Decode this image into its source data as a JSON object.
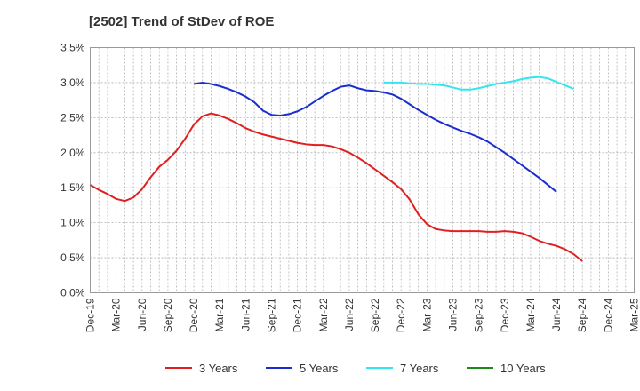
{
  "chart_data": {
    "type": "line",
    "title": "[2502]  Trend of StDev of ROE",
    "xlabel": "",
    "ylabel": "",
    "x_tick_labels": [
      "Dec-19",
      "Mar-20",
      "Jun-20",
      "Sep-20",
      "Dec-20",
      "Mar-21",
      "Jun-21",
      "Sep-21",
      "Dec-21",
      "Mar-22",
      "Jun-22",
      "Sep-22",
      "Dec-22",
      "Mar-23",
      "Jun-23",
      "Sep-23",
      "Dec-23",
      "Mar-24",
      "Jun-24",
      "Sep-24",
      "Dec-24",
      "Mar-25"
    ],
    "y_tick_labels": [
      "0.0%",
      "0.5%",
      "1.0%",
      "1.5%",
      "2.0%",
      "2.5%",
      "3.0%",
      "3.5%"
    ],
    "ylim": [
      0,
      3.5
    ],
    "grid": true,
    "legend_position": "bottom",
    "series": [
      {
        "name": "3 Years",
        "color": "#e02020",
        "start_index": 0,
        "values": [
          1.54,
          1.47,
          1.41,
          1.34,
          1.31,
          1.36,
          1.48,
          1.65,
          1.8,
          1.9,
          2.03,
          2.2,
          2.4,
          2.52,
          2.56,
          2.53,
          2.48,
          2.42,
          2.35,
          2.3,
          2.26,
          2.23,
          2.2,
          2.17,
          2.14,
          2.12,
          2.11,
          2.11,
          2.09,
          2.05,
          2.0,
          1.93,
          1.85,
          1.76,
          1.67,
          1.58,
          1.48,
          1.33,
          1.12,
          0.98,
          0.91,
          0.89,
          0.88,
          0.88,
          0.88,
          0.88,
          0.87,
          0.87,
          0.88,
          0.87,
          0.85,
          0.8,
          0.74,
          0.7,
          0.67,
          0.62,
          0.55,
          0.45
        ]
      },
      {
        "name": "5 Years",
        "color": "#1a2ed0",
        "start_index": 12,
        "values": [
          2.98,
          3.0,
          2.98,
          2.95,
          2.91,
          2.86,
          2.8,
          2.72,
          2.6,
          2.54,
          2.53,
          2.55,
          2.59,
          2.65,
          2.73,
          2.81,
          2.88,
          2.94,
          2.96,
          2.92,
          2.89,
          2.88,
          2.86,
          2.83,
          2.77,
          2.69,
          2.61,
          2.54,
          2.47,
          2.41,
          2.36,
          2.31,
          2.27,
          2.22,
          2.16,
          2.08,
          2.0,
          1.91,
          1.82,
          1.73,
          1.64,
          1.54,
          1.44
        ]
      },
      {
        "name": "7 Years",
        "color": "#33e5ef",
        "start_index": 34,
        "values": [
          3.0,
          3.0,
          3.0,
          2.99,
          2.98,
          2.98,
          2.97,
          2.96,
          2.93,
          2.9,
          2.9,
          2.92,
          2.95,
          2.98,
          3.0,
          3.02,
          3.05,
          3.07,
          3.08,
          3.06,
          3.01,
          2.96,
          2.91
        ]
      },
      {
        "name": "10 Years",
        "color": "#1a8a1a",
        "start_index": 0,
        "values": []
      }
    ]
  }
}
